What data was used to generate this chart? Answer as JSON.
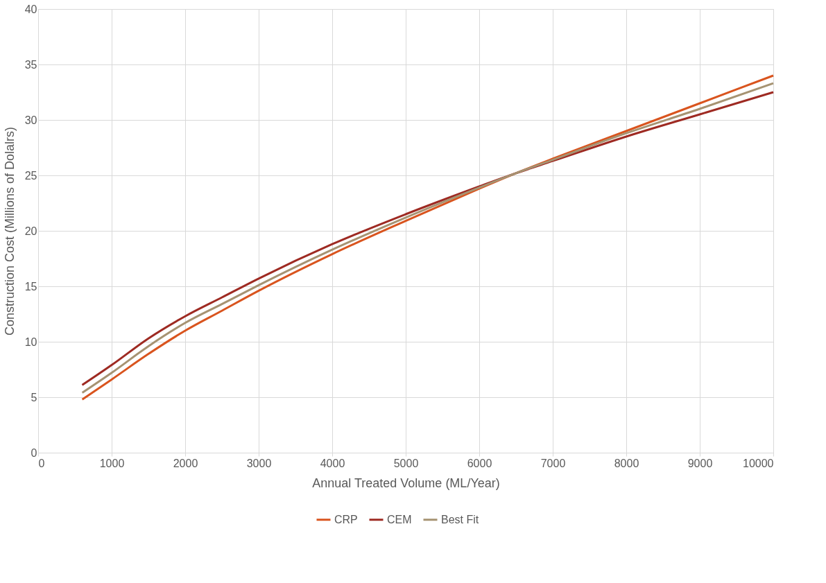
{
  "chart_data": {
    "type": "line",
    "xlabel": "Annual Treated Volume (ML/Year)",
    "ylabel": "Construction Cost (Millions of Dolalrs)",
    "x": [
      600,
      1000,
      1500,
      2000,
      2500,
      3000,
      4000,
      5000,
      6000,
      6500,
      7000,
      8000,
      9000,
      10000
    ],
    "series": [
      {
        "name": "CRP",
        "color": "#d9541e",
        "values": [
          4.8,
          6.6,
          8.9,
          11.0,
          12.8,
          14.6,
          17.9,
          20.9,
          23.8,
          25.2,
          26.5,
          29.0,
          31.5,
          34.0
        ]
      },
      {
        "name": "CEM",
        "color": "#9e2a22",
        "values": [
          6.1,
          7.9,
          10.3,
          12.3,
          14.0,
          15.7,
          18.8,
          21.5,
          24.0,
          25.2,
          26.3,
          28.5,
          30.5,
          32.5
        ]
      },
      {
        "name": "Best Fit",
        "color": "#a69372",
        "values": [
          5.4,
          7.2,
          9.6,
          11.7,
          13.4,
          15.1,
          18.3,
          21.2,
          23.9,
          25.2,
          26.4,
          28.8,
          31.0,
          33.3
        ]
      }
    ],
    "xlim": [
      0,
      10000
    ],
    "xticks": [
      0,
      1000,
      2000,
      3000,
      4000,
      5000,
      6000,
      7000,
      8000,
      9000,
      10000
    ],
    "ylim": [
      0,
      40
    ],
    "yticks": [
      0,
      5,
      10,
      15,
      20,
      25,
      30,
      35,
      40
    ],
    "grid": true,
    "legend": "bottom",
    "marker": "none",
    "line_style": "solid"
  }
}
